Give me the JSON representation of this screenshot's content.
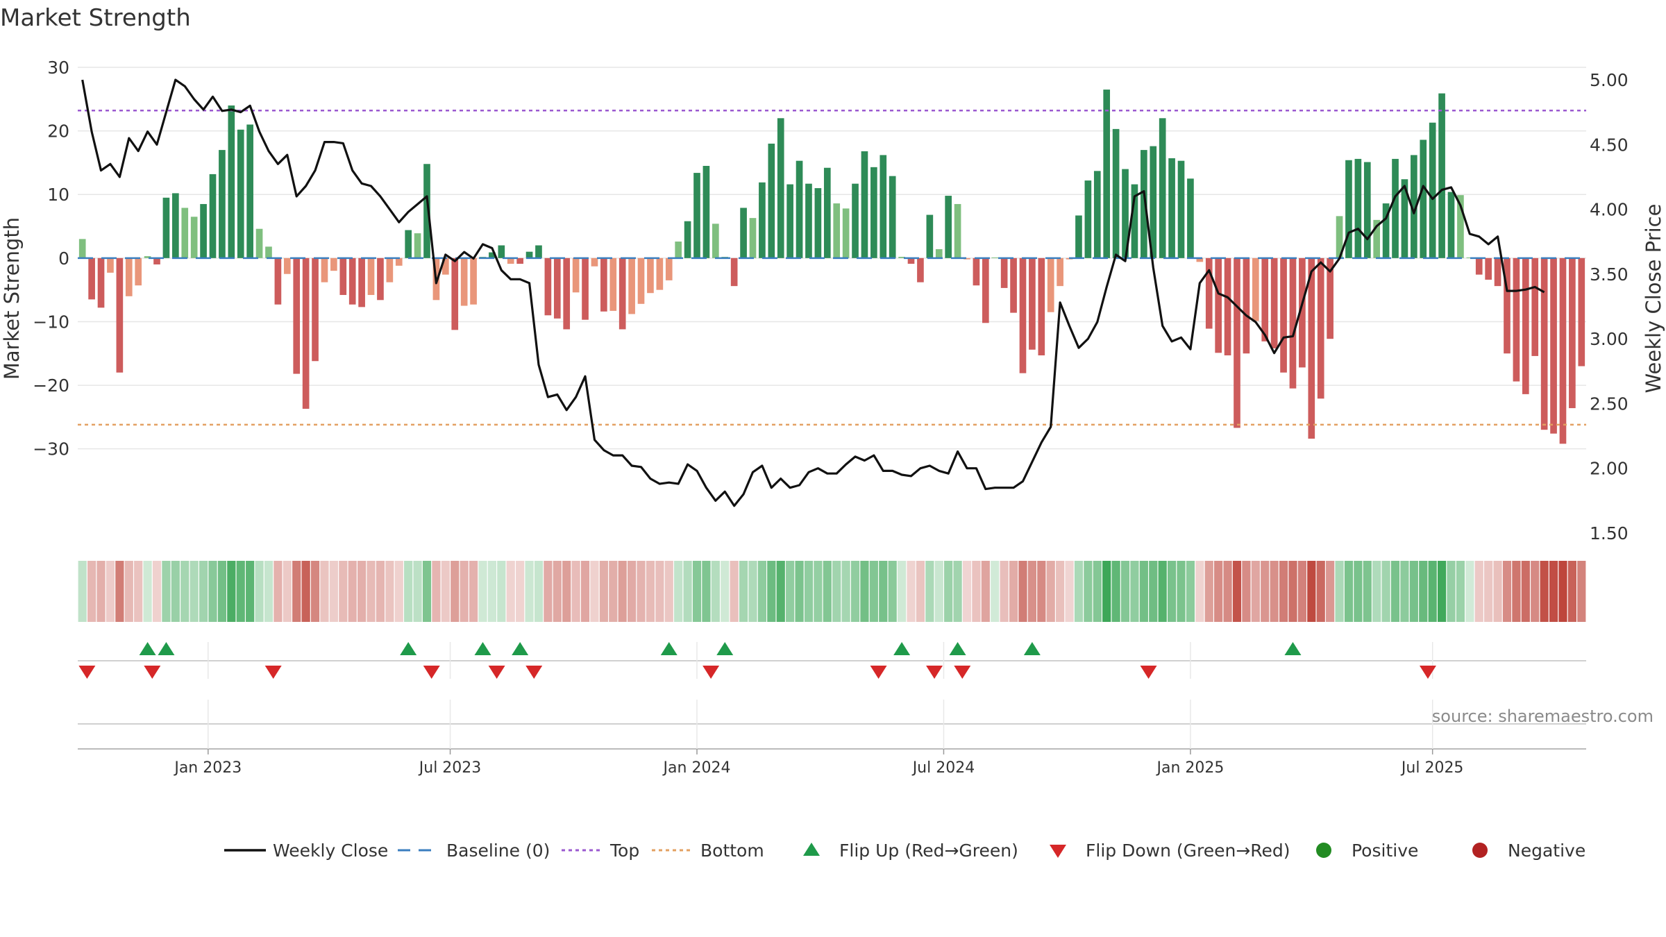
{
  "chart_data": {
    "type": "bar",
    "title": "Market Strength",
    "ylabel_left": "Market Strength",
    "ylabel_right": "Weekly Close Price",
    "ylim_left": [
      -32,
      30
    ],
    "ylim_right": [
      1.45,
      5.2
    ],
    "y_ticks_left": [
      30,
      20,
      10,
      0,
      -10,
      -20,
      -30
    ],
    "y_tick_labels_left": [
      "30",
      "20",
      "10",
      "0",
      "−10",
      "−20",
      "−30"
    ],
    "y_ticks_right": [
      5.0,
      4.5,
      4.0,
      3.5,
      3.0,
      2.5,
      2.0,
      1.5
    ],
    "y_tick_labels_right": [
      "5.00",
      "4.50",
      "4.00",
      "3.50",
      "3.00",
      "2.50",
      "2.00",
      "1.50"
    ],
    "x_ticks": [
      {
        "label": "Jan 2023",
        "week": 14
      },
      {
        "label": "Jul 2023",
        "week": 40
      },
      {
        "label": "Jan 2024",
        "week": 66.5
      },
      {
        "label": "Jul 2024",
        "week": 93
      },
      {
        "label": "Jan 2025",
        "week": 119.5
      },
      {
        "label": "Jul 2025",
        "week": 145.5
      }
    ],
    "top_level": 23.2,
    "bottom_level": -26.2,
    "strength": [
      3,
      -6.5,
      -7.8,
      -2.3,
      -18,
      -6,
      -4.3,
      0.3,
      -1,
      9.5,
      10.2,
      7.9,
      6.5,
      8.5,
      13.2,
      17,
      24,
      20.2,
      21,
      4.6,
      1.8,
      -7.3,
      -2.5,
      -18.2,
      -23.7,
      -16.2,
      -3.8,
      -2,
      -5.8,
      -7.3,
      -7.7,
      -5.8,
      -6.6,
      -3.8,
      -1.2,
      4.4,
      3.9,
      14.8,
      -6.6,
      -2.6,
      -11.3,
      -7.5,
      -7.3,
      0.2,
      0.9,
      2,
      -0.9,
      -0.9,
      1,
      2,
      -9,
      -9.5,
      -11.2,
      -5.4,
      -9.7,
      -1.3,
      -8.4,
      -8.3,
      -11.2,
      -8.8,
      -7.2,
      -5.5,
      -5,
      -3.5,
      2.6,
      5.8,
      13.4,
      14.5,
      5.4,
      0.2,
      -4.4,
      7.9,
      6.3,
      11.9,
      18,
      22,
      11.6,
      15.3,
      11.7,
      11,
      14.2,
      8.6,
      7.8,
      11.7,
      16.8,
      14.3,
      16.2,
      12.9,
      0.2,
      -0.9,
      -3.8,
      6.8,
      1.4,
      9.8,
      8.5,
      -0.2,
      -4.3,
      -10.2,
      0.1,
      -4.7,
      -8.6,
      -18.1,
      -14.4,
      -15.3,
      -8.5,
      -4.4,
      -0.2,
      6.7,
      12.2,
      13.7,
      26.5,
      20.3,
      14,
      11.6,
      17,
      17.6,
      22,
      15.7,
      15.3,
      12.5,
      -0.6,
      -11.1,
      -14.9,
      -15.3,
      -26.7,
      -15,
      -9.9,
      -13.1,
      -14.2,
      -18,
      -20.5,
      -17.2,
      -28.4,
      -22.1,
      -12.7,
      6.6,
      15.4,
      15.6,
      15.1,
      6,
      8.6,
      15.6,
      12.4,
      16.2,
      18.6,
      21.3,
      25.9,
      10.4,
      9.9,
      0.1,
      -2.6,
      -3.4,
      -4.4,
      -15,
      -19.4,
      -21.4,
      -15.4,
      -27,
      -27.6,
      -29.2,
      -23.6,
      -17
    ],
    "series": [
      {
        "name": "Weekly Close",
        "values": [
          5.0,
          4.6,
          4.3,
          4.35,
          4.25,
          4.55,
          4.45,
          4.6,
          4.5,
          4.75,
          5.0,
          4.95,
          4.85,
          4.77,
          4.87,
          4.76,
          4.77,
          4.75,
          4.8,
          4.6,
          4.45,
          4.35,
          4.42,
          4.1,
          4.18,
          4.3,
          4.52,
          4.52,
          4.51,
          4.3,
          4.2,
          4.18,
          4.1,
          4.0,
          3.9,
          3.98,
          4.04,
          4.1,
          3.43,
          3.65,
          3.6,
          3.67,
          3.62,
          3.73,
          3.7,
          3.53,
          3.46,
          3.46,
          3.43,
          2.8,
          2.55,
          2.57,
          2.45,
          2.55,
          2.71,
          2.22,
          2.14,
          2.1,
          2.1,
          2.02,
          2.01,
          1.92,
          1.88,
          1.89,
          1.88,
          2.03,
          1.98,
          1.85,
          1.75,
          1.82,
          1.71,
          1.8,
          1.97,
          2.02,
          1.85,
          1.92,
          1.85,
          1.87,
          1.97,
          2.0,
          1.96,
          1.96,
          2.03,
          2.09,
          2.06,
          2.1,
          1.98,
          1.98,
          1.95,
          1.94,
          2.0,
          2.02,
          1.98,
          1.96,
          2.13,
          2.0,
          2.0,
          1.84,
          1.85,
          1.85,
          1.85,
          1.9,
          2.05,
          2.2,
          2.32,
          3.28,
          3.1,
          2.93,
          3.0,
          3.13,
          3.4,
          3.65,
          3.6,
          4.1,
          4.14,
          3.55,
          3.1,
          2.98,
          3.01,
          2.92,
          3.43,
          3.53,
          3.35,
          3.32,
          3.25,
          3.18,
          3.13,
          3.03,
          2.89,
          3.01,
          3.02,
          3.27,
          3.52,
          3.59,
          3.52,
          3.62,
          3.82,
          3.85,
          3.77,
          3.87,
          3.93,
          4.1,
          4.18,
          3.97,
          4.18,
          4.08,
          4.15,
          4.17,
          4.03,
          3.81,
          3.79,
          3.73,
          3.79,
          3.37,
          3.37,
          3.38,
          3.4,
          3.36
        ]
      }
    ],
    "baseline_label": "Baseline (0)",
    "flip_up_weeks": [
      7.5,
      9.5,
      35.5,
      43.5,
      47.5,
      63.5,
      69.5,
      88.5,
      94.5,
      102.5,
      130.5
    ],
    "flip_down_weeks": [
      1,
      8,
      21,
      38,
      45,
      49,
      68,
      86,
      92,
      95,
      115,
      145
    ],
    "source": "source: sharemaestro.com",
    "legend": [
      {
        "label": "Weekly Close",
        "symbol": "line",
        "color": "#111111"
      },
      {
        "label": "Baseline (0)",
        "symbol": "dash",
        "color": "#3a7ebf"
      },
      {
        "label": "Top",
        "symbol": "dot",
        "color": "#9b59d0"
      },
      {
        "label": "Bottom",
        "symbol": "dot",
        "color": "#e3a062"
      },
      {
        "label": "Flip Up (Red→Green)",
        "symbol": "tri-up",
        "color": "#1f9a4a"
      },
      {
        "label": "Flip Down (Green→Red)",
        "symbol": "tri-down",
        "color": "#d62728"
      },
      {
        "label": "Positive",
        "symbol": "circle",
        "color": "#228b22"
      },
      {
        "label": "Negative",
        "symbol": "circle",
        "color": "#b22222"
      }
    ],
    "colors": {
      "green_dark": "#2e8b57",
      "green_light": "#7fbf7f",
      "red_dark": "#cd5c5c",
      "red_light": "#e9967a",
      "close_line": "#111111",
      "top_line": "#9b59d0",
      "bottom_line": "#e3a062",
      "baseline": "#3a7ebf"
    }
  }
}
